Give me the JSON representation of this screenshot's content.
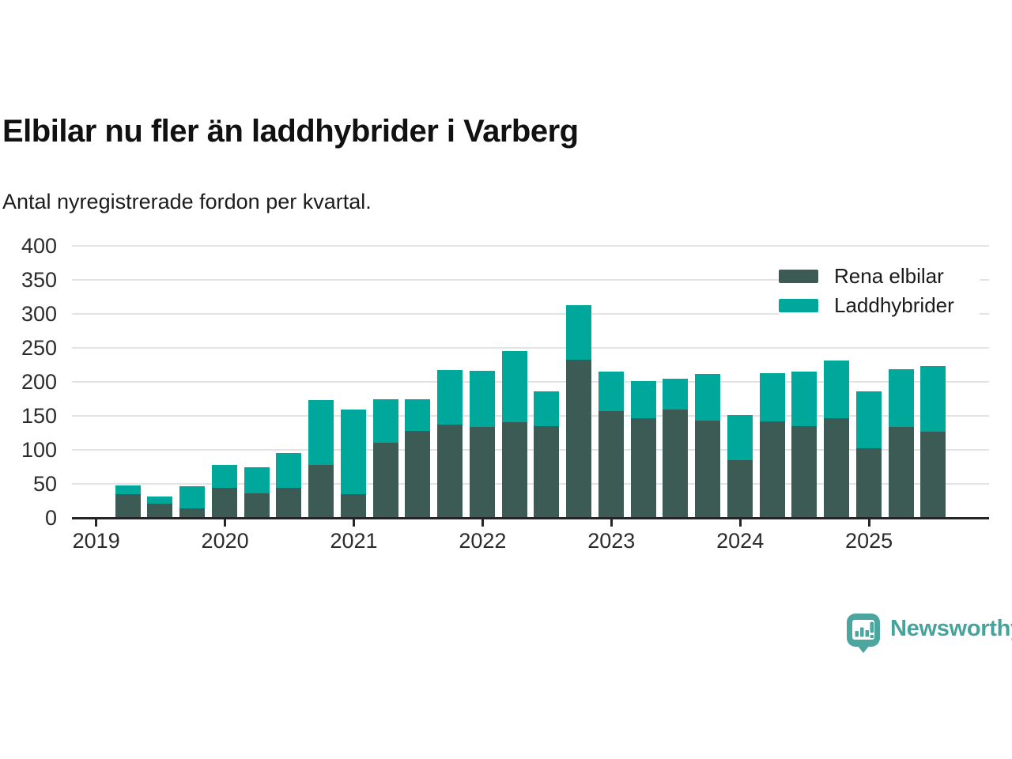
{
  "header": {
    "title": "Elbilar nu fler än laddhybrider i Varberg",
    "subtitle": "Antal nyregistrerade fordon per kvartal."
  },
  "chart_data": {
    "type": "bar",
    "stacked": true,
    "title": "Elbilar nu fler än laddhybrider i Varberg",
    "subtitle": "Antal nyregistrerade fordon per kvartal.",
    "categories": [
      "2019 Q2",
      "2019 Q3",
      "2019 Q4",
      "2020 Q1",
      "2020 Q2",
      "2020 Q3",
      "2020 Q4",
      "2021 Q1",
      "2021 Q2",
      "2021 Q3",
      "2021 Q4",
      "2022 Q1",
      "2022 Q2",
      "2022 Q3",
      "2022 Q4",
      "2023 Q1",
      "2023 Q2",
      "2023 Q3",
      "2023 Q4",
      "2024 Q1",
      "2024 Q2",
      "2024 Q3",
      "2024 Q4",
      "2025 Q1",
      "2025 Q2",
      "2025 Q3"
    ],
    "series": [
      {
        "name": "Rena elbilar",
        "color": "#3d5b55",
        "values": [
          35,
          21,
          14,
          44,
          36,
          44,
          78,
          35,
          110,
          128,
          137,
          134,
          141,
          135,
          232,
          157,
          147,
          159,
          143,
          85,
          142,
          135,
          147,
          102,
          134,
          127
        ]
      },
      {
        "name": "Laddhybrider",
        "color": "#00a89c",
        "values": [
          13,
          10,
          32,
          34,
          38,
          51,
          95,
          124,
          65,
          47,
          81,
          82,
          104,
          51,
          81,
          58,
          54,
          46,
          69,
          66,
          71,
          80,
          85,
          84,
          85,
          96
        ]
      }
    ],
    "x_tick_labels": [
      "2019",
      "2020",
      "2021",
      "2022",
      "2023",
      "2024",
      "2025"
    ],
    "y_ticks": [
      0,
      50,
      100,
      150,
      200,
      250,
      300,
      350,
      400
    ],
    "ylim": [
      0,
      400
    ],
    "grid": true,
    "legend_position": "top-right"
  },
  "branding": {
    "logo_text": "Newsworthy",
    "logo_color": "#4ba69f",
    "logo_text_color": "#45a29c"
  },
  "colors": {
    "background": "#ffffff",
    "gridline": "#e3e3e3",
    "axis": "#232527",
    "text": "#1c1c1c"
  }
}
